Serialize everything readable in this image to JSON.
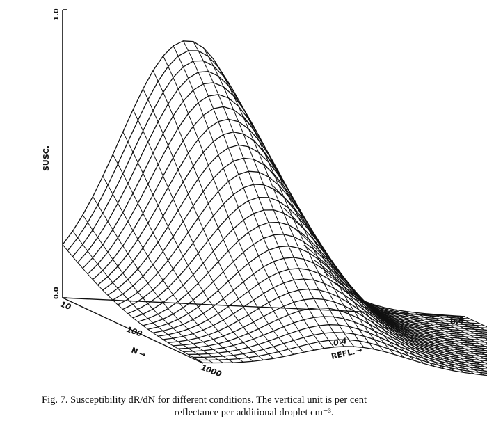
{
  "chart_data": {
    "type": "surface",
    "z_axis": {
      "label": "SUSC.",
      "min_label": "0.0",
      "max_label": "1.0",
      "range": [
        0,
        1
      ]
    },
    "n_axis": {
      "label": "N",
      "arrow": "→",
      "ticks": [
        "10",
        "100",
        "1000"
      ],
      "scale": "log",
      "range": [
        10,
        1000
      ]
    },
    "r_axis": {
      "label": "REFL.",
      "arrow": "→",
      "ticks": [
        "0.4",
        "0.8"
      ],
      "range": [
        0,
        0.8
      ]
    },
    "peak": {
      "susc": 0.92,
      "refl": 0.25,
      "N": 10
    }
  },
  "caption": {
    "line1": "Fig. 7. Susceptibility dR/dN for different conditions. The vertical unit is per cent",
    "line2": "reflectance per additional droplet cm⁻³."
  }
}
